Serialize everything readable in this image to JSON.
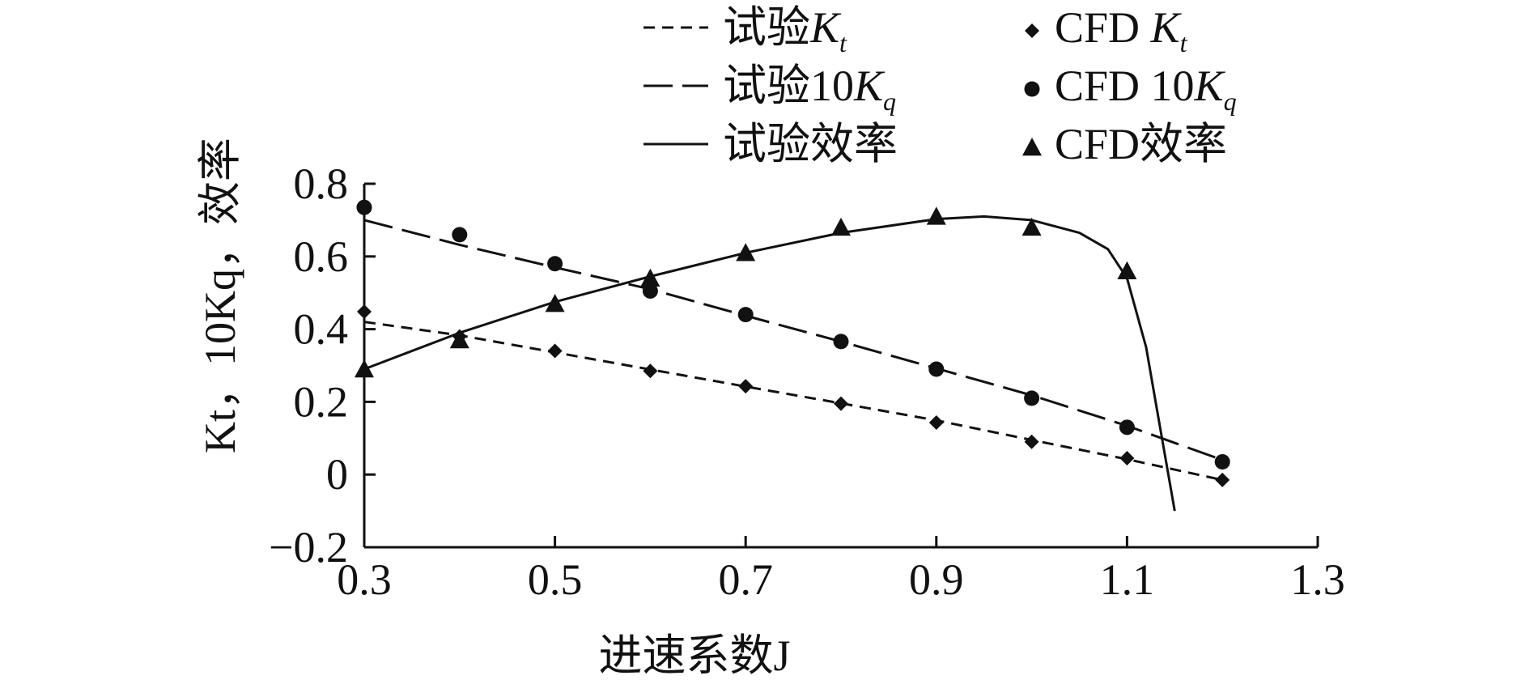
{
  "chart_data": {
    "type": "line",
    "xlabel": "进速系数J",
    "ylabel": "Kt，10Kq，效率",
    "xlim": [
      0.3,
      1.3
    ],
    "ylim": [
      -0.2,
      0.8
    ],
    "x_ticks": [
      "0.3",
      "0.5",
      "0.7",
      "0.9",
      "1.1",
      "1.3"
    ],
    "y_ticks": [
      "0.8",
      "0.6",
      "0.4",
      "0.2",
      "0",
      "−0.2"
    ],
    "grid": false,
    "legend_position": "top",
    "legend": [
      {
        "label": "试验Kt",
        "style": "short-dash"
      },
      {
        "label": "试验10Kq",
        "style": "long-dash"
      },
      {
        "label": "试验效率",
        "style": "solid"
      },
      {
        "label": "CFD Kt",
        "marker": "diamond"
      },
      {
        "label": "CFD 10Kq",
        "marker": "circle"
      },
      {
        "label": "CFD效率",
        "marker": "triangle"
      }
    ],
    "series": [
      {
        "name": "试验Kt",
        "kind": "line",
        "dash": "short",
        "x": [
          0.3,
          0.4,
          0.5,
          0.6,
          0.7,
          0.8,
          0.9,
          1.0,
          1.1,
          1.2
        ],
        "y": [
          0.42,
          0.383,
          0.336,
          0.289,
          0.242,
          0.196,
          0.149,
          0.095,
          0.042,
          -0.015
        ]
      },
      {
        "name": "试验10Kq",
        "kind": "line",
        "dash": "long",
        "x": [
          0.3,
          0.4,
          0.5,
          0.6,
          0.7,
          0.8,
          0.9,
          1.0,
          1.1,
          1.2
        ],
        "y": [
          0.7,
          0.632,
          0.57,
          0.51,
          0.437,
          0.366,
          0.292,
          0.218,
          0.134,
          0.04
        ]
      },
      {
        "name": "试验效率",
        "kind": "line",
        "dash": "solid",
        "x": [
          0.3,
          0.4,
          0.5,
          0.6,
          0.7,
          0.8,
          0.9,
          0.95,
          1.0,
          1.05,
          1.08,
          1.1,
          1.12,
          1.13,
          1.14,
          1.15
        ],
        "y": [
          0.29,
          0.39,
          0.475,
          0.545,
          0.61,
          0.665,
          0.703,
          0.71,
          0.7,
          0.665,
          0.62,
          0.54,
          0.35,
          0.2,
          0.05,
          -0.1
        ]
      },
      {
        "name": "CFD Kt",
        "kind": "marker",
        "marker": "diamond",
        "x": [
          0.3,
          0.4,
          0.5,
          0.6,
          0.7,
          0.8,
          0.9,
          1.0,
          1.1,
          1.2
        ],
        "y": [
          0.448,
          0.38,
          0.34,
          0.285,
          0.243,
          0.195,
          0.143,
          0.09,
          0.045,
          -0.015
        ]
      },
      {
        "name": "CFD 10Kq",
        "kind": "marker",
        "marker": "circle",
        "x": [
          0.3,
          0.4,
          0.5,
          0.6,
          0.7,
          0.8,
          0.9,
          1.0,
          1.1,
          1.2
        ],
        "y": [
          0.735,
          0.66,
          0.58,
          0.505,
          0.44,
          0.366,
          0.29,
          0.21,
          0.13,
          0.035
        ]
      },
      {
        "name": "CFD效率",
        "kind": "marker",
        "marker": "triangle",
        "x": [
          0.3,
          0.4,
          0.5,
          0.6,
          0.7,
          0.8,
          0.9,
          1.0,
          1.1
        ],
        "y": [
          0.29,
          0.37,
          0.47,
          0.54,
          0.61,
          0.68,
          0.71,
          0.68,
          0.56
        ]
      }
    ]
  }
}
